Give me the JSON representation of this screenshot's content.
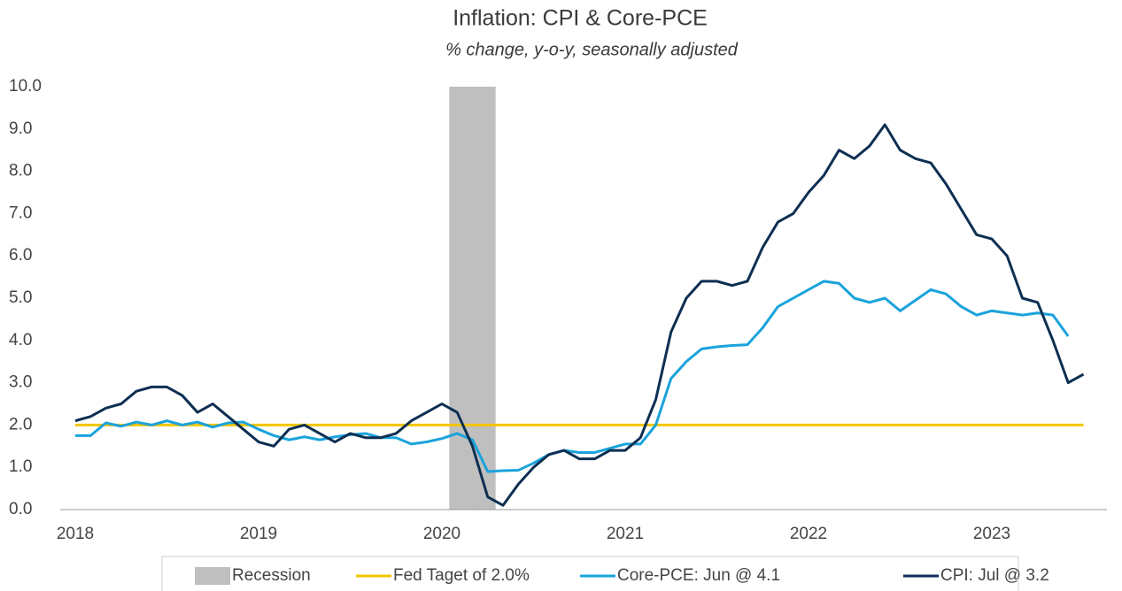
{
  "chart_data": {
    "type": "line",
    "title": "Inflation: CPI & Core-PCE",
    "subtitle": "% change, y-o-y, seasonally adjusted",
    "categories": [
      "2018",
      null,
      null,
      null,
      null,
      null,
      null,
      null,
      null,
      null,
      null,
      null,
      "2019",
      null,
      null,
      null,
      null,
      null,
      null,
      null,
      null,
      null,
      null,
      null,
      "2020",
      null,
      null,
      null,
      null,
      null,
      null,
      null,
      null,
      null,
      null,
      null,
      "2021",
      null,
      null,
      null,
      null,
      null,
      null,
      null,
      null,
      null,
      null,
      null,
      "2022",
      null,
      null,
      null,
      null,
      null,
      null,
      null,
      null,
      null,
      null,
      null,
      "2023",
      null,
      null,
      null,
      null,
      null,
      null
    ],
    "ylim": [
      0,
      10
    ],
    "yticks": [
      {
        "value": 0,
        "label": "0.0"
      },
      {
        "value": 1,
        "label": "1.0"
      },
      {
        "value": 2,
        "label": "2.0"
      },
      {
        "value": 3,
        "label": "3.0"
      },
      {
        "value": 4,
        "label": "4.0"
      },
      {
        "value": 5,
        "label": "5.0"
      },
      {
        "value": 6,
        "label": "6.0"
      },
      {
        "value": 7,
        "label": "7.0"
      },
      {
        "value": 8,
        "label": "8.0"
      },
      {
        "value": 9,
        "label": "9.0"
      },
      {
        "value": 10,
        "label": "10.0"
      }
    ],
    "grid": false,
    "series": [
      {
        "name": "Recession",
        "type": "bar",
        "color": "#bfbfbf",
        "values": [
          null,
          null,
          null,
          null,
          null,
          null,
          null,
          null,
          null,
          null,
          null,
          null,
          null,
          null,
          null,
          null,
          null,
          null,
          null,
          null,
          null,
          null,
          null,
          null,
          null,
          10,
          10,
          10,
          null,
          null,
          null,
          null,
          null,
          null,
          null,
          null,
          null,
          null,
          null,
          null,
          null,
          null,
          null,
          null,
          null,
          null,
          null,
          null,
          null,
          null,
          null,
          null,
          null,
          null,
          null,
          null,
          null,
          null,
          null,
          null,
          null,
          null,
          null,
          null,
          null,
          null,
          null
        ]
      },
      {
        "name": "Fed Taget of 2.0%",
        "type": "line",
        "color": "#f2c500",
        "values": [
          2,
          2,
          2,
          2,
          2,
          2,
          2,
          2,
          2,
          2,
          2,
          2,
          2,
          2,
          2,
          2,
          2,
          2,
          2,
          2,
          2,
          2,
          2,
          2,
          2,
          2,
          2,
          2,
          2,
          2,
          2,
          2,
          2,
          2,
          2,
          2,
          2,
          2,
          2,
          2,
          2,
          2,
          2,
          2,
          2,
          2,
          2,
          2,
          2,
          2,
          2,
          2,
          2,
          2,
          2,
          2,
          2,
          2,
          2,
          2,
          2,
          2,
          2,
          2,
          2,
          2,
          2
        ]
      },
      {
        "name": "Core-PCE: Jun @ 4.1",
        "type": "line",
        "color": "#1aa3dc",
        "values": [
          1.75,
          1.75,
          2.05,
          1.97,
          2.07,
          2.0,
          2.1,
          2.0,
          2.07,
          1.95,
          2.05,
          2.07,
          1.9,
          1.75,
          1.65,
          1.72,
          1.65,
          1.72,
          1.77,
          1.8,
          1.7,
          1.7,
          1.55,
          1.6,
          1.68,
          1.8,
          1.65,
          0.9,
          0.92,
          0.93,
          1.1,
          1.3,
          1.4,
          1.35,
          1.35,
          1.45,
          1.55,
          1.55,
          2.0,
          3.1,
          3.5,
          3.8,
          3.85,
          3.88,
          3.9,
          4.3,
          4.8,
          5.0,
          5.2,
          5.4,
          5.35,
          5.0,
          4.9,
          5.0,
          4.7,
          4.95,
          5.2,
          5.1,
          4.8,
          4.6,
          4.7,
          4.65,
          4.6,
          4.65,
          4.6,
          4.1,
          null
        ]
      },
      {
        "name": "CPI: Jul @ 3.2",
        "type": "line",
        "color": "#0d2f52",
        "values": [
          2.1,
          2.2,
          2.4,
          2.5,
          2.8,
          2.9,
          2.9,
          2.7,
          2.3,
          2.5,
          2.2,
          1.9,
          1.6,
          1.5,
          1.9,
          2.0,
          1.8,
          1.6,
          1.8,
          1.7,
          1.7,
          1.8,
          2.1,
          2.3,
          2.5,
          2.3,
          1.5,
          0.3,
          0.1,
          0.6,
          1.0,
          1.3,
          1.4,
          1.2,
          1.2,
          1.4,
          1.4,
          1.7,
          2.6,
          4.2,
          5.0,
          5.4,
          5.4,
          5.3,
          5.4,
          6.2,
          6.8,
          7.0,
          7.5,
          7.9,
          8.5,
          8.3,
          8.6,
          9.1,
          8.5,
          8.3,
          8.2,
          7.7,
          7.1,
          6.5,
          6.4,
          6.0,
          5.0,
          4.9,
          4.0,
          3.0,
          3.2
        ]
      }
    ]
  }
}
